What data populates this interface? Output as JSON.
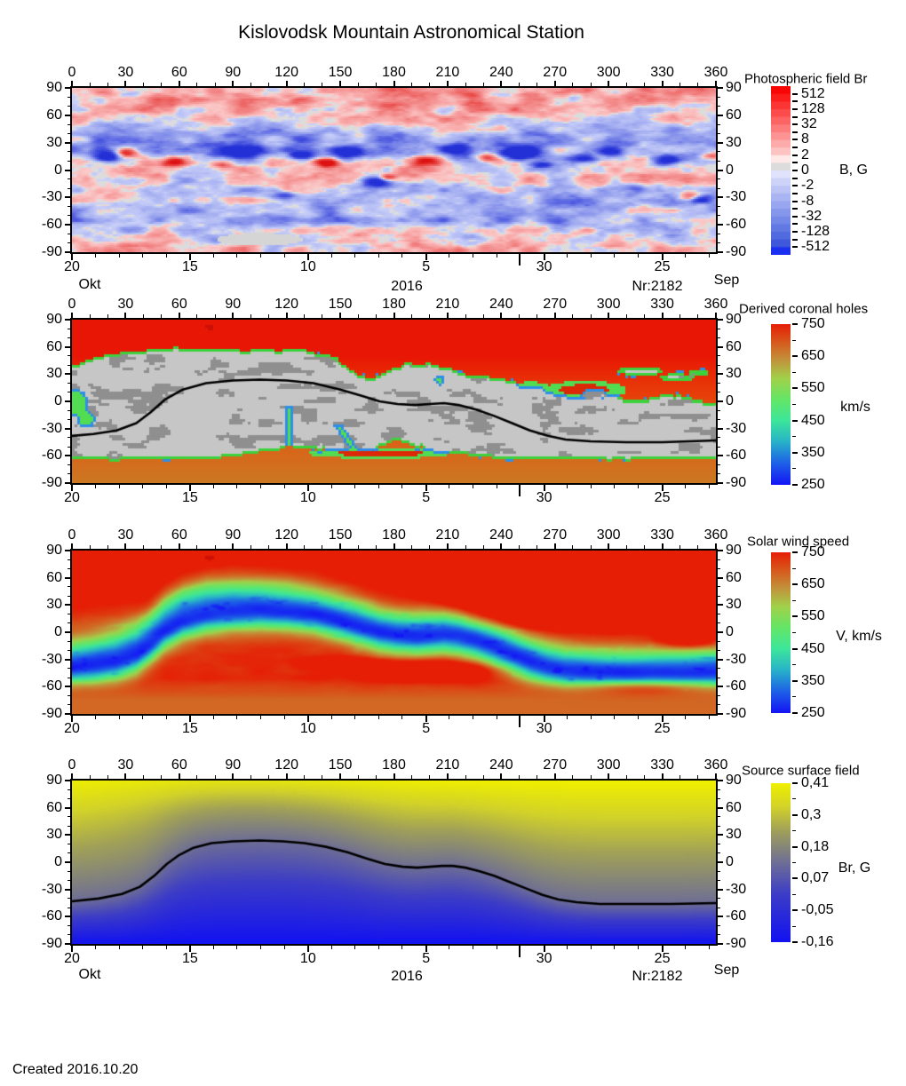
{
  "page": {
    "title": "Kislovodsk Mountain Astronomical Station",
    "created": "Created  2016.10.20"
  },
  "axes": {
    "lon": {
      "min": 0,
      "max": 360,
      "major_step": 30,
      "minor_step": 10,
      "labels": [
        "0",
        "30",
        "60",
        "90",
        "120",
        "150",
        "180",
        "210",
        "240",
        "270",
        "300",
        "330",
        "360"
      ]
    },
    "lat": {
      "min": -90,
      "max": 90,
      "major_step": 30,
      "minor_step": 10,
      "labels": [
        "90",
        "60",
        "30",
        "0",
        "-30",
        "-60",
        "-90"
      ]
    },
    "date": {
      "labels": [
        "20",
        "15",
        "10",
        "5",
        "30",
        "25"
      ],
      "positions_deg": [
        0,
        66,
        132,
        198,
        264,
        330
      ],
      "day_step_deg": 13.1868,
      "month_boundary_deg": 250.4,
      "month_left": "Okt",
      "month_right": "Sep",
      "year": "2016",
      "rotation": "Nr:2182"
    }
  },
  "panels": [
    {
      "name": "photospheric-field",
      "legend": {
        "title": "Photospheric field Br",
        "unit": "B, G",
        "labels": [
          "512",
          "128",
          "32",
          "8",
          "2",
          "0",
          "-2",
          "-8",
          "-32",
          "-128",
          "-512"
        ]
      }
    },
    {
      "name": "coronal-holes",
      "legend": {
        "title": "Derived coronal holes",
        "unit": "km/s",
        "labels": [
          "750",
          "650",
          "550",
          "450",
          "350",
          "250"
        ]
      }
    },
    {
      "name": "solar-wind",
      "legend": {
        "title": "Solar wind speed",
        "unit": "V, km/s",
        "labels": [
          "750",
          "650",
          "550",
          "450",
          "350",
          "250"
        ]
      }
    },
    {
      "name": "source-surface-field",
      "legend": {
        "title": "Source surface field",
        "unit": "Br, G",
        "labels": [
          "0,41",
          "0,3",
          "0,18",
          "0,07",
          "-0,05",
          "-0,16"
        ]
      }
    }
  ],
  "chart_data": [
    {
      "type": "heatmap",
      "title": "Photospheric field Br",
      "x_range": [
        0,
        360
      ],
      "y_range": [
        -90,
        90
      ],
      "units": "B, G",
      "scale_type": "discrete-symmetric-log",
      "scale_values": [
        512,
        128,
        32,
        8,
        2,
        0,
        -2,
        -8,
        -32,
        -128,
        -512
      ],
      "segment_colors": [
        "#fa0404",
        "#fb1c1c",
        "#fb3434",
        "#fc4b4b",
        "#fc6363",
        "#fc7b7b",
        "#fd9292",
        "#fdaaaa",
        "#fdc2c2",
        "#fee8e8",
        "#dcdcdc",
        "#e0e3fb",
        "#cdd3f8",
        "#bbc4f5",
        "#a9b5f2",
        "#97a6ee",
        "#8597eb",
        "#7488e7",
        "#6279e3",
        "#516adf",
        "#3f57db",
        "#1b2ff0"
      ],
      "positive_ramp": [
        [
          0,
          "#fbd4d4"
        ],
        [
          0.25,
          "#f8a6a6"
        ],
        [
          0.5,
          "#f07878"
        ],
        [
          0.75,
          "#e84440"
        ],
        [
          1.1,
          "#dd1111"
        ]
      ],
      "negative_ramp": [
        [
          0,
          "#d2d7fa"
        ],
        [
          0.25,
          "#aab4f2"
        ],
        [
          0.5,
          "#7e8ae9"
        ],
        [
          0.75,
          "#4c58e0"
        ],
        [
          1.1,
          "#2230d6"
        ]
      ],
      "zero_color": "#dcdcdc",
      "description": "Noisy bipolar magnetogram: pink positive background at high north latitudes and south pole, blue belt near 15-40 N and -20..-60 S, strong red/blue active-region blobs along the activity belt"
    },
    {
      "type": "heatmap",
      "title": "Derived coronal holes",
      "x_range": [
        0,
        360
      ],
      "y_range": [
        -90,
        90
      ],
      "units": "km/s",
      "scale_values": [
        750,
        650,
        550,
        450,
        350,
        250
      ],
      "gradient_stops": [
        [
          0,
          "#1414f5"
        ],
        [
          0.14,
          "#1e64e6"
        ],
        [
          0.27,
          "#28b4c8"
        ],
        [
          0.4,
          "#3ce69b"
        ],
        [
          0.53,
          "#64e667"
        ],
        [
          0.66,
          "#a0d24b"
        ],
        [
          0.78,
          "#c3913a"
        ],
        [
          0.89,
          "#d7581c"
        ],
        [
          1,
          "#e61e05"
        ]
      ],
      "colors": {
        "fast_red": "#e81604",
        "orange": "#cc7822",
        "closed_light": "#c6c6c6",
        "closed_dark": "#8f8f8f",
        "edge_green": "#3cd23c",
        "edge_blue": "#2e8ee8",
        "feature_green": "#52dc52",
        "feature_red": "#dd2806",
        "marker_red": "#cc1006"
      },
      "neutral_line": [
        [
          0,
          -38
        ],
        [
          12,
          -36
        ],
        [
          25,
          -32
        ],
        [
          36,
          -24
        ],
        [
          44,
          -12
        ],
        [
          52,
          2
        ],
        [
          62,
          13
        ],
        [
          75,
          20
        ],
        [
          90,
          23
        ],
        [
          105,
          24
        ],
        [
          120,
          23
        ],
        [
          135,
          20
        ],
        [
          150,
          13
        ],
        [
          162,
          6
        ],
        [
          172,
          0
        ],
        [
          182,
          -3
        ],
        [
          192,
          -4
        ],
        [
          200,
          -3
        ],
        [
          208,
          -2
        ],
        [
          216,
          -4
        ],
        [
          226,
          -9
        ],
        [
          236,
          -16
        ],
        [
          246,
          -24
        ],
        [
          256,
          -32
        ],
        [
          266,
          -38
        ],
        [
          276,
          -42
        ],
        [
          290,
          -44
        ],
        [
          310,
          -45
        ],
        [
          330,
          -45
        ],
        [
          345,
          -44
        ],
        [
          360,
          -43
        ]
      ],
      "description": "Red polar coronal holes, gray closed-field mid-latitude region with darker patches, green/blue boundary fringes, black neutral line"
    },
    {
      "type": "heatmap",
      "title": "Solar wind speed",
      "x_range": [
        0,
        360
      ],
      "y_range": [
        -90,
        90
      ],
      "units": "V, km/s",
      "scale_values": [
        750,
        650,
        550,
        450,
        350,
        250
      ],
      "gradient_stops": [
        [
          0,
          "#1414f5"
        ],
        [
          0.14,
          "#1e64e6"
        ],
        [
          0.27,
          "#28b4c8"
        ],
        [
          0.4,
          "#3ce69b"
        ],
        [
          0.53,
          "#64e667"
        ],
        [
          0.66,
          "#a0d24b"
        ],
        [
          0.78,
          "#c3913a"
        ],
        [
          0.89,
          "#d7581c"
        ],
        [
          1,
          "#e61e05"
        ]
      ],
      "description": "Fast red wind at poles and a broad red region upper right, slow green/blue winding band along the heliospheric current sheet, orange southern hemisphere"
    },
    {
      "type": "heatmap",
      "title": "Source surface field",
      "x_range": [
        0,
        360
      ],
      "y_range": [
        -90,
        90
      ],
      "units": "Br, G",
      "scale_values": [
        0.41,
        0.3,
        0.18,
        0.07,
        -0.05,
        -0.16
      ],
      "gradient_stops": [
        [
          0,
          "#1212f2"
        ],
        [
          0.3,
          "#3c3cc8"
        ],
        [
          0.5,
          "#6e6e96"
        ],
        [
          0.7,
          "#a0a05a"
        ],
        [
          0.85,
          "#d2d22a"
        ],
        [
          1,
          "#f0f000"
        ]
      ],
      "neutral_line": [
        [
          0,
          -43
        ],
        [
          15,
          -40
        ],
        [
          28,
          -35
        ],
        [
          38,
          -27
        ],
        [
          46,
          -15
        ],
        [
          53,
          -2
        ],
        [
          60,
          8
        ],
        [
          68,
          16
        ],
        [
          78,
          21
        ],
        [
          90,
          23
        ],
        [
          105,
          24
        ],
        [
          118,
          23
        ],
        [
          130,
          21
        ],
        [
          142,
          17
        ],
        [
          154,
          11
        ],
        [
          165,
          4
        ],
        [
          175,
          -2
        ],
        [
          185,
          -5
        ],
        [
          193,
          -6
        ],
        [
          200,
          -5
        ],
        [
          207,
          -4
        ],
        [
          213,
          -4
        ],
        [
          220,
          -6
        ],
        [
          228,
          -10
        ],
        [
          236,
          -15
        ],
        [
          245,
          -22
        ],
        [
          254,
          -29
        ],
        [
          263,
          -36
        ],
        [
          272,
          -41
        ],
        [
          282,
          -44
        ],
        [
          295,
          -46
        ],
        [
          315,
          -46
        ],
        [
          335,
          -46
        ],
        [
          360,
          -45
        ]
      ],
      "description": "Smooth yellow positive field in north to blue negative field in south with black neutral line"
    }
  ]
}
